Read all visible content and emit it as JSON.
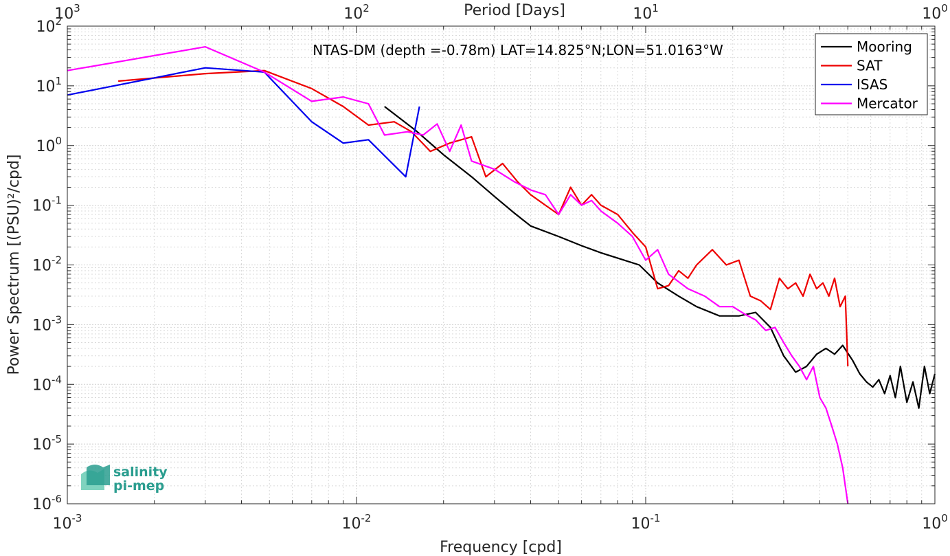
{
  "chart_data": {
    "type": "line",
    "title": "NTAS-DM (depth =-0.78m) LAT=14.825°N;LON=51.0163°W",
    "xlabel": "Frequency [cpd]",
    "ylabel": "Power Spectrum [(PSU)²/cpd]",
    "x2label": "Period [Days]",
    "xscale": "log",
    "yscale": "log",
    "xlim": [
      0.001,
      1
    ],
    "ylim": [
      1e-06,
      100
    ],
    "x_ticks": [
      {
        "v": 0.001,
        "base": "10",
        "exp": "-3"
      },
      {
        "v": 0.01,
        "base": "10",
        "exp": "-2"
      },
      {
        "v": 0.1,
        "base": "10",
        "exp": "-1"
      },
      {
        "v": 1,
        "base": "10",
        "exp": "0"
      }
    ],
    "y_ticks": [
      {
        "v": 1e-06,
        "base": "10",
        "exp": "-6"
      },
      {
        "v": 1e-05,
        "base": "10",
        "exp": "-5"
      },
      {
        "v": 0.0001,
        "base": "10",
        "exp": "-4"
      },
      {
        "v": 0.001,
        "base": "10",
        "exp": "-3"
      },
      {
        "v": 0.01,
        "base": "10",
        "exp": "-2"
      },
      {
        "v": 0.1,
        "base": "10",
        "exp": "-1"
      },
      {
        "v": 1,
        "base": "10",
        "exp": "0"
      },
      {
        "v": 10,
        "base": "10",
        "exp": "1"
      },
      {
        "v": 100,
        "base": "10",
        "exp": "2"
      }
    ],
    "x2_ticks": [
      {
        "v": 0.001,
        "base": "10",
        "exp": "3"
      },
      {
        "v": 0.01,
        "base": "10",
        "exp": "2"
      },
      {
        "v": 0.1,
        "base": "10",
        "exp": "1"
      },
      {
        "v": 1,
        "base": "10",
        "exp": "0"
      }
    ],
    "grid": true,
    "legend_position": "top-right",
    "series": [
      {
        "name": "Mooring",
        "color": "#000000",
        "x": [
          0.0125,
          0.016,
          0.02,
          0.025,
          0.03,
          0.035,
          0.04,
          0.05,
          0.06,
          0.07,
          0.08,
          0.095,
          0.11,
          0.13,
          0.15,
          0.18,
          0.21,
          0.24,
          0.27,
          0.3,
          0.33,
          0.36,
          0.39,
          0.42,
          0.45,
          0.48,
          0.52,
          0.55,
          0.58,
          0.61,
          0.64,
          0.67,
          0.7,
          0.73,
          0.76,
          0.8,
          0.84,
          0.88,
          0.92,
          0.96,
          1.0
        ],
        "y": [
          4.5,
          1.8,
          0.7,
          0.3,
          0.14,
          0.075,
          0.045,
          0.03,
          0.021,
          0.016,
          0.013,
          0.01,
          0.005,
          0.003,
          0.002,
          0.0014,
          0.0014,
          0.0016,
          0.0009,
          0.0003,
          0.00016,
          0.0002,
          0.00032,
          0.0004,
          0.00032,
          0.00045,
          0.00025,
          0.00015,
          0.00011,
          9e-05,
          0.00012,
          7e-05,
          0.00014,
          6e-05,
          0.0002,
          5e-05,
          0.00011,
          4e-05,
          0.0002,
          7e-05,
          0.00015
        ]
      },
      {
        "name": "SAT",
        "color": "#ee0000",
        "x": [
          0.0015,
          0.003,
          0.0048,
          0.007,
          0.009,
          0.011,
          0.0135,
          0.0155,
          0.018,
          0.021,
          0.025,
          0.028,
          0.032,
          0.036,
          0.04,
          0.045,
          0.05,
          0.055,
          0.06,
          0.065,
          0.07,
          0.08,
          0.09,
          0.1,
          0.11,
          0.12,
          0.13,
          0.14,
          0.15,
          0.17,
          0.19,
          0.21,
          0.23,
          0.25,
          0.27,
          0.29,
          0.31,
          0.33,
          0.35,
          0.37,
          0.39,
          0.41,
          0.43,
          0.45,
          0.47,
          0.49,
          0.5
        ],
        "y": [
          12,
          16,
          18,
          9,
          4.5,
          2.2,
          2.5,
          1.7,
          0.8,
          1.1,
          1.4,
          0.3,
          0.5,
          0.25,
          0.15,
          0.1,
          0.07,
          0.2,
          0.1,
          0.15,
          0.1,
          0.07,
          0.035,
          0.02,
          0.004,
          0.0045,
          0.008,
          0.006,
          0.01,
          0.018,
          0.01,
          0.012,
          0.003,
          0.0025,
          0.0018,
          0.006,
          0.004,
          0.005,
          0.003,
          0.007,
          0.004,
          0.005,
          0.003,
          0.006,
          0.002,
          0.003,
          0.0002
        ]
      },
      {
        "name": "ISAS",
        "color": "#0000ee",
        "x": [
          0.001,
          0.003,
          0.0048,
          0.007,
          0.009,
          0.011,
          0.0148,
          0.0165
        ],
        "y": [
          7,
          20,
          17,
          2.5,
          1.1,
          1.25,
          0.3,
          4.5
        ]
      },
      {
        "name": "Mercator",
        "color": "#ff00ff",
        "x": [
          0.001,
          0.003,
          0.0048,
          0.007,
          0.009,
          0.011,
          0.0125,
          0.015,
          0.017,
          0.019,
          0.021,
          0.023,
          0.025,
          0.03,
          0.035,
          0.04,
          0.045,
          0.05,
          0.055,
          0.06,
          0.065,
          0.07,
          0.08,
          0.09,
          0.1,
          0.11,
          0.12,
          0.14,
          0.16,
          0.18,
          0.2,
          0.22,
          0.24,
          0.26,
          0.28,
          0.3,
          0.32,
          0.34,
          0.36,
          0.38,
          0.4,
          0.42,
          0.44,
          0.46,
          0.48,
          0.5
        ],
        "y": [
          18,
          45,
          17,
          5.5,
          6.5,
          5,
          1.5,
          1.7,
          1.5,
          2.3,
          0.8,
          2.2,
          0.55,
          0.4,
          0.25,
          0.18,
          0.15,
          0.07,
          0.15,
          0.1,
          0.12,
          0.08,
          0.05,
          0.03,
          0.012,
          0.018,
          0.007,
          0.004,
          0.003,
          0.002,
          0.002,
          0.0015,
          0.0012,
          0.0008,
          0.0009,
          0.0005,
          0.0003,
          0.0002,
          0.00012,
          0.0002,
          6e-05,
          4e-05,
          2e-05,
          1e-05,
          4e-06,
          1e-06
        ]
      }
    ]
  },
  "logo": {
    "line1": "salinity",
    "line2": "pi-mep",
    "color": "#2a9d8f"
  }
}
